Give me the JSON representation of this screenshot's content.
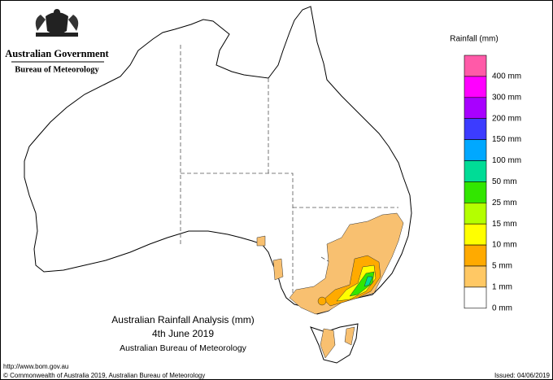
{
  "header": {
    "agency": "Australian Government",
    "bureau": "Bureau of Meteorology"
  },
  "legend": {
    "title": "Rainfall (mm)",
    "items": [
      {
        "color": "#ff5aa8",
        "label": "400 mm"
      },
      {
        "color": "#ff00ff",
        "label": "300 mm"
      },
      {
        "color": "#a800ff",
        "label": "200 mm"
      },
      {
        "color": "#3c3cff",
        "label": "150 mm"
      },
      {
        "color": "#00a8ff",
        "label": "100 mm"
      },
      {
        "color": "#00dc96",
        "label": "50 mm"
      },
      {
        "color": "#32e600",
        "label": "25 mm"
      },
      {
        "color": "#b4ff00",
        "label": "15 mm"
      },
      {
        "color": "#ffff00",
        "label": "10 mm"
      },
      {
        "color": "#ffaa00",
        "label": "5 mm"
      },
      {
        "color": "#ffc864",
        "label": "1 mm"
      },
      {
        "color": "#ffffff",
        "label": "0 mm"
      }
    ]
  },
  "map_title": {
    "line1": "Australian Rainfall Analysis (mm)",
    "line2": "4th June 2019",
    "line3": "Australian Bureau of Meteorology"
  },
  "footer": {
    "url": "http://www.bom.gov.au",
    "copyright": "© Commonwealth of Australia 2019, Australian Bureau of Meteorology",
    "issued": "Issued: 04/06/2019"
  }
}
